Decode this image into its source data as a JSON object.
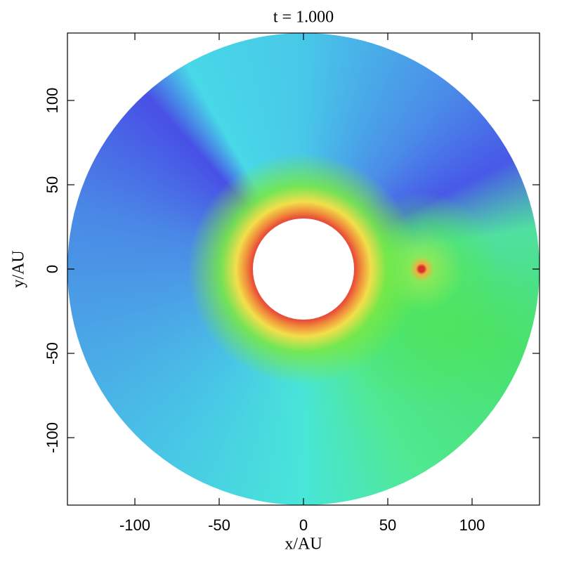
{
  "chart_data": {
    "type": "image",
    "title": "t = 1.000",
    "x_label": "x/AU",
    "y_label": "y/AU",
    "xlim": [
      -140,
      140
    ],
    "ylim": [
      -140,
      140
    ],
    "xticks": [
      -100,
      -50,
      0,
      50,
      100
    ],
    "yticks": [
      -100,
      -50,
      0,
      50,
      100
    ]
  }
}
